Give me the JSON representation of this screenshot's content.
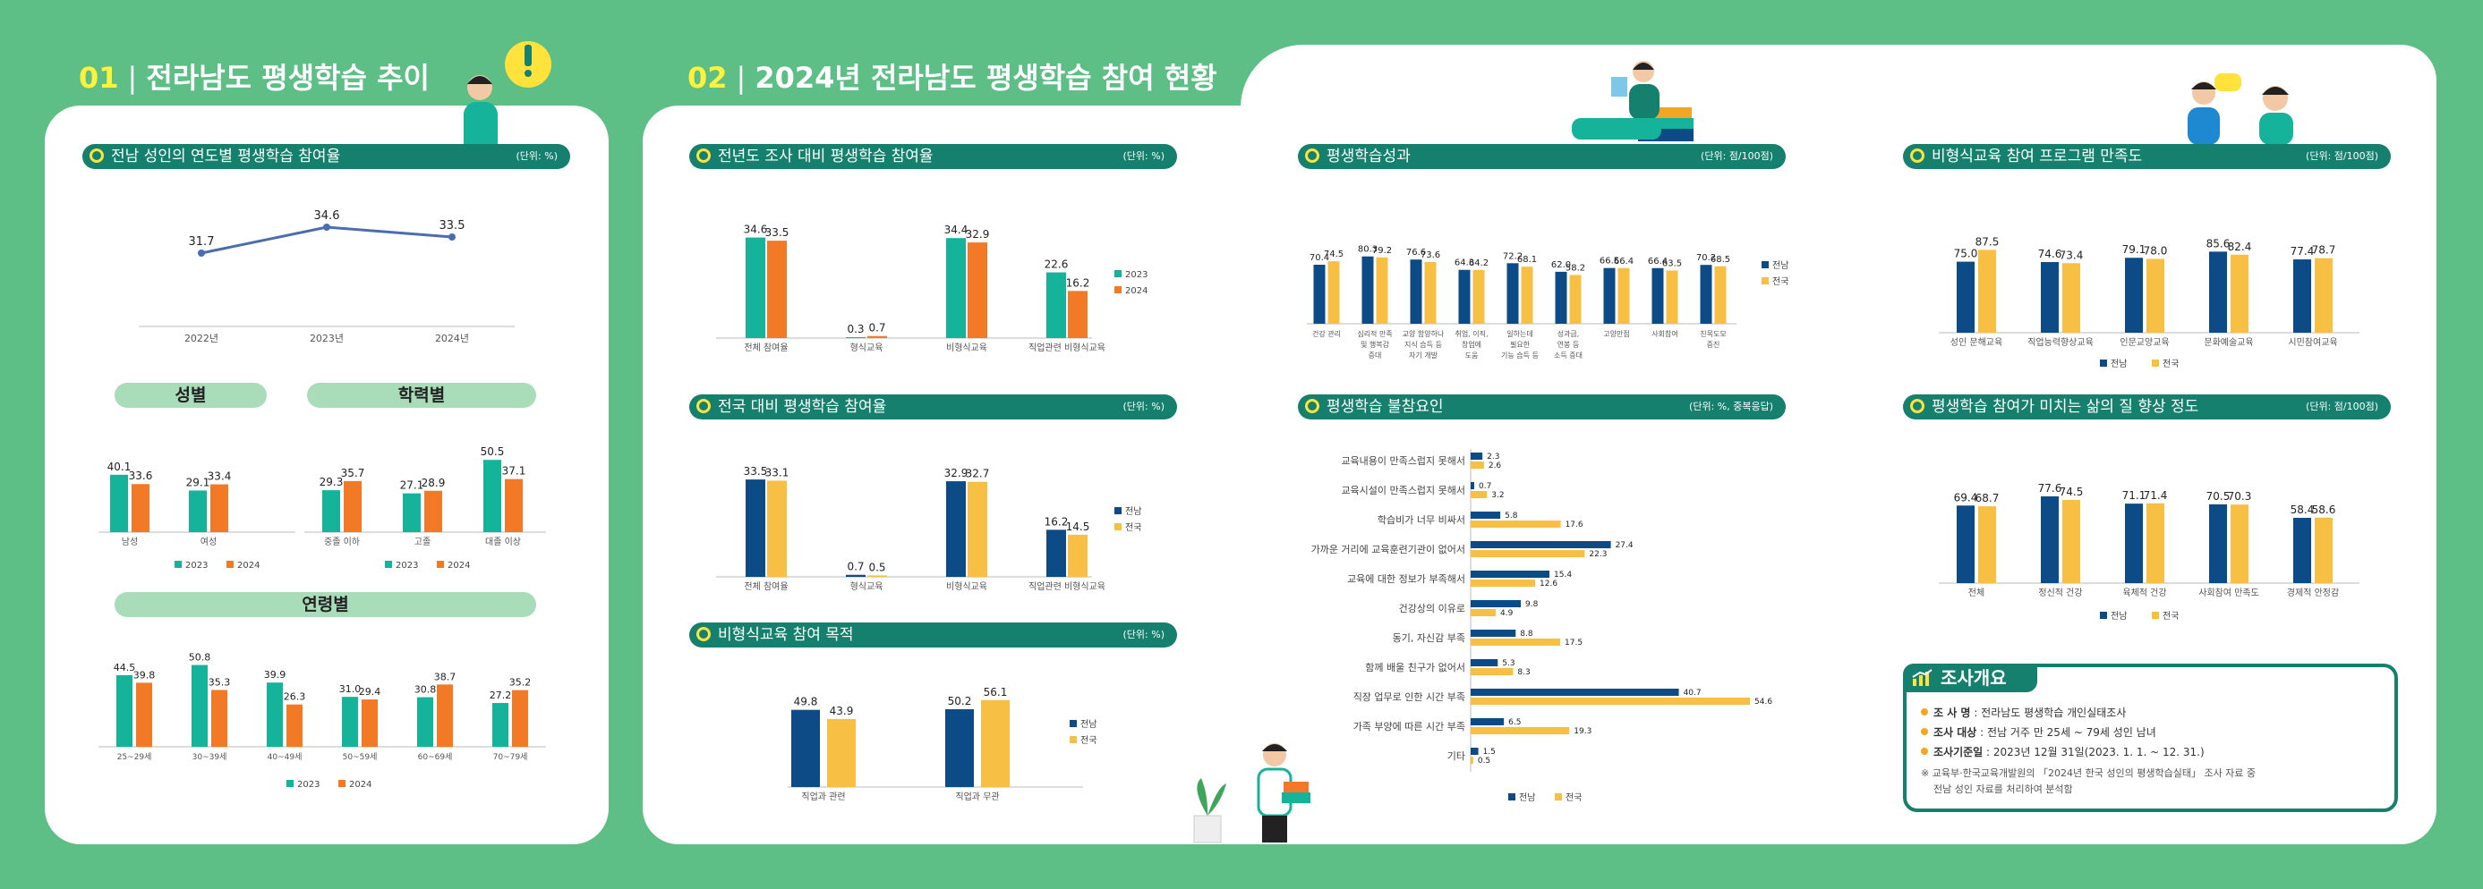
{
  "section1": {
    "num": "01",
    "title": "전라남도 평생학습 추이"
  },
  "section2": {
    "num": "02",
    "title": "2024년 전라남도 평생학습 참여 현황"
  },
  "colors": {
    "green": "#16806e",
    "teal": "#14b39a",
    "orange": "#f27a26",
    "navy": "#0d4b87",
    "yellow": "#f8bf45",
    "bg": "#5dbe86"
  },
  "headers": {
    "yearly": {
      "title": "전남 성인의 연도별 평생학습 참여율",
      "unit": "(단위: %)"
    },
    "prev": {
      "title": "전년도 조사 대비 평생학습 참여율",
      "unit": "(단위: %)"
    },
    "national": {
      "title": "전국 대비 평생학습 참여율",
      "unit": "(단위: %)"
    },
    "purpose": {
      "title": "비형식교육 참여 목적",
      "unit": "(단위: %)"
    },
    "outcome": {
      "title": "평생학습성과",
      "unit": "(단위: 점/100점)"
    },
    "barrier": {
      "title": "평생학습 불참요인",
      "unit": "(단위: %, 중복응답)"
    },
    "satisfaction": {
      "title": "비형식교육 참여 프로그램 만족도",
      "unit": "(단위: 점/100점)"
    },
    "quality": {
      "title": "평생학습 참여가 미치는 삶의 질 향상 정도",
      "unit": "(단위: 점/100점)"
    }
  },
  "pills": {
    "gender": "성별",
    "education": "학력별",
    "age": "연령별"
  },
  "summary": {
    "title": "조사개요",
    "lines": [
      {
        "label": "조 사 명",
        "value": ": 전라남도 평생학습 개인실태조사"
      },
      {
        "label": "조사 대상",
        "value": ": 전남 거주 만 25세 ~ 79세 성인 남녀"
      },
      {
        "label": "조사기준일",
        "value": ": 2023년 12월 31일(2023. 1. 1. ~ 12. 31.)"
      }
    ],
    "note1": "※ 교육부·한국교육개발원의 「2024년 한국 성인의 평생학습실태」 조사 자료 중",
    "note2": "전남 성인 자료를 처리하여 분석함"
  },
  "chart_data": [
    {
      "id": "yearly",
      "type": "line",
      "categories": [
        "2022년",
        "2023년",
        "2024년"
      ],
      "series": [
        {
          "values": [
            31.7,
            34.6,
            33.5
          ]
        }
      ]
    },
    {
      "id": "gender",
      "type": "bar",
      "categories": [
        "남성",
        "여성"
      ],
      "series": [
        {
          "name": "2023",
          "values": [
            40.1,
            29.1
          ]
        },
        {
          "name": "2024",
          "values": [
            33.6,
            33.4
          ]
        }
      ]
    },
    {
      "id": "education",
      "type": "bar",
      "categories": [
        "중졸 이하",
        "고졸",
        "대졸 이상"
      ],
      "series": [
        {
          "name": "2023",
          "values": [
            29.3,
            27.1,
            50.5
          ]
        },
        {
          "name": "2024",
          "values": [
            35.7,
            28.9,
            37.1
          ]
        }
      ]
    },
    {
      "id": "age",
      "type": "bar",
      "categories": [
        "25~29세",
        "30~39세",
        "40~49세",
        "50~59세",
        "60~69세",
        "70~79세"
      ],
      "series": [
        {
          "name": "2023",
          "values": [
            44.5,
            50.8,
            39.9,
            31.0,
            30.8,
            27.2
          ]
        },
        {
          "name": "2024",
          "values": [
            39.8,
            35.3,
            26.3,
            29.4,
            38.7,
            35.2
          ]
        }
      ]
    },
    {
      "id": "prev",
      "type": "bar",
      "categories": [
        "전체 참여율",
        "형식교육",
        "비형식교육",
        "직업관련 비형식교육"
      ],
      "series": [
        {
          "name": "2023",
          "values": [
            34.6,
            0.3,
            34.4,
            22.6
          ]
        },
        {
          "name": "2024",
          "values": [
            33.5,
            0.7,
            32.9,
            16.2
          ]
        }
      ]
    },
    {
      "id": "national",
      "type": "bar",
      "categories": [
        "전체 참여율",
        "형식교육",
        "비형식교육",
        "직업관련 비형식교육"
      ],
      "series": [
        {
          "name": "전남",
          "values": [
            33.5,
            0.7,
            32.9,
            16.2
          ]
        },
        {
          "name": "전국",
          "values": [
            33.1,
            0.5,
            32.7,
            14.5
          ]
        }
      ]
    },
    {
      "id": "purpose",
      "type": "bar",
      "categories": [
        "직업과 관련",
        "직업과 무관"
      ],
      "series": [
        {
          "name": "전남",
          "values": [
            49.8,
            50.2
          ]
        },
        {
          "name": "전국",
          "values": [
            43.9,
            56.1
          ]
        }
      ]
    },
    {
      "id": "outcome",
      "type": "bar",
      "categories": [
        "건강 관리",
        "심리적 만족|및 행복감|증대",
        "교양 함양하나|지식 습득 등|자기 개발",
        "취업, 이직,|창업에|도움",
        "일하는데|필요한|기능 습득 등",
        "성과급,|연봉 등|소득 증대",
        "고양만점",
        "사회참여",
        "친목도모|증진"
      ],
      "series": [
        {
          "name": "전남",
          "values": [
            70.4,
            80.3,
            76.6,
            64.3,
            72.2,
            62.0,
            66.5,
            66.4,
            70.2
          ]
        },
        {
          "name": "전국",
          "values": [
            74.5,
            79.2,
            73.6,
            64.2,
            68.1,
            58.2,
            66.4,
            63.5,
            68.5
          ]
        }
      ]
    },
    {
      "id": "barrier",
      "type": "bar",
      "orientation": "horizontal",
      "categories": [
        "교육내용이 만족스럽지 못해서",
        "교육시설이 만족스럽지 못해서",
        "학습비가 너무 비싸서",
        "가까운 거리에 교육훈련기관이 없어서",
        "교육에 대한 정보가 부족해서",
        "건강상의 이유로",
        "동기, 자신감 부족",
        "함께 배울 친구가 없어서",
        "직장 업무로 인한 시간 부족",
        "가족 부양에 따른 시간 부족",
        "기타"
      ],
      "series": [
        {
          "name": "전남",
          "values": [
            2.3,
            0.7,
            5.8,
            27.4,
            15.4,
            9.8,
            8.8,
            5.3,
            40.7,
            6.5,
            1.5
          ]
        },
        {
          "name": "전국",
          "values": [
            2.6,
            3.2,
            17.6,
            22.3,
            12.6,
            4.9,
            17.5,
            8.3,
            54.6,
            19.3,
            0.5
          ]
        }
      ]
    },
    {
      "id": "satisfaction",
      "type": "bar",
      "categories": [
        "성인 문해교육",
        "직업능력향상교육",
        "인문교양교육",
        "문화예술교육",
        "시민참여교육"
      ],
      "series": [
        {
          "name": "전남",
          "values": [
            75.0,
            74.6,
            79.1,
            85.6,
            77.4
          ]
        },
        {
          "name": "전국",
          "values": [
            87.5,
            73.4,
            78.0,
            82.4,
            78.7
          ]
        }
      ]
    },
    {
      "id": "quality",
      "type": "bar",
      "categories": [
        "전체",
        "정신적 건강",
        "육체적 건강",
        "사회참여 만족도",
        "경제적 안정감"
      ],
      "series": [
        {
          "name": "전남",
          "values": [
            69.4,
            77.6,
            71.1,
            70.5,
            58.4
          ]
        },
        {
          "name": "전국",
          "values": [
            68.7,
            74.5,
            71.4,
            70.3,
            58.6
          ]
        }
      ]
    }
  ]
}
